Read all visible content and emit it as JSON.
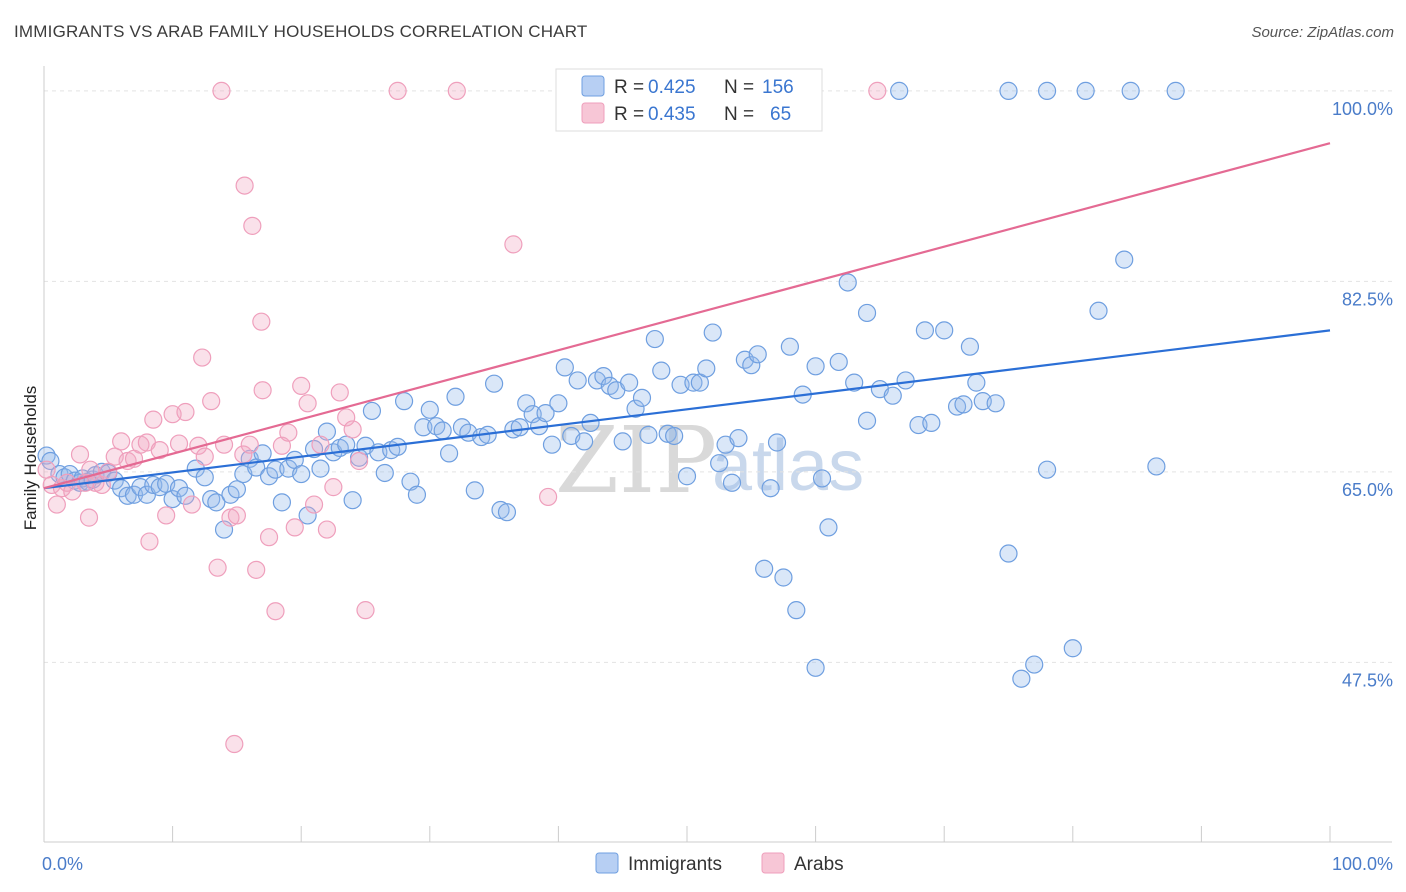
{
  "header": {
    "title": "IMMIGRANTS VS ARAB FAMILY HOUSEHOLDS CORRELATION CHART",
    "source": "Source: ZipAtlas.com"
  },
  "watermark": {
    "zip": "ZIP",
    "atlas": "atlas"
  },
  "chart_data": {
    "type": "scatter",
    "title": "IMMIGRANTS VS ARAB FAMILY HOUSEHOLDS CORRELATION CHART",
    "xlabel": "",
    "ylabel": "Family Households",
    "xlim": [
      0,
      100
    ],
    "ylim": [
      31,
      101
    ],
    "x_tick_labels": [
      {
        "value": 0,
        "label": "0.0%"
      },
      {
        "value": 100,
        "label": "100.0%"
      }
    ],
    "y_ticks": [
      {
        "value": 47.5,
        "label": "47.5%"
      },
      {
        "value": 65.0,
        "label": "65.0%"
      },
      {
        "value": 82.5,
        "label": "82.5%"
      },
      {
        "value": 100.0,
        "label": "100.0%"
      }
    ],
    "grid": true,
    "legend_position": "bottom-center",
    "stats_legend": [
      {
        "series": "Immigrants",
        "r_label": "R = ",
        "r": "0.425",
        "n_label": "N = ",
        "n": "156"
      },
      {
        "series": "Arabs",
        "r_label": "R = ",
        "r": "0.435",
        "n_label": "N = ",
        "n": "65"
      }
    ],
    "series": [
      {
        "name": "Immigrants",
        "color": "#6f9fe0",
        "line_color": "#2b6fd6",
        "trend": {
          "x": [
            0,
            100
          ],
          "y": [
            63.5,
            78.0
          ]
        },
        "points": [
          [
            0.2,
            66.5
          ],
          [
            0.5,
            66.0
          ],
          [
            1.2,
            64.8
          ],
          [
            1.6,
            64.5
          ],
          [
            2.0,
            64.8
          ],
          [
            2.4,
            64.2
          ],
          [
            2.8,
            64.0
          ],
          [
            3.0,
            64.4
          ],
          [
            3.4,
            64.1
          ],
          [
            3.8,
            64.3
          ],
          [
            4.0,
            64.7
          ],
          [
            4.5,
            65.0
          ],
          [
            5.0,
            64.9
          ],
          [
            5.5,
            64.2
          ],
          [
            6.0,
            63.5
          ],
          [
            6.5,
            62.8
          ],
          [
            7.0,
            62.9
          ],
          [
            7.5,
            63.6
          ],
          [
            8.0,
            62.9
          ],
          [
            8.5,
            63.8
          ],
          [
            9.0,
            63.6
          ],
          [
            9.5,
            63.9
          ],
          [
            10.0,
            62.5
          ],
          [
            10.5,
            63.5
          ],
          [
            11.0,
            62.8
          ],
          [
            11.8,
            65.3
          ],
          [
            12.5,
            64.5
          ],
          [
            13.0,
            62.5
          ],
          [
            13.4,
            62.2
          ],
          [
            14.0,
            59.7
          ],
          [
            14.5,
            62.9
          ],
          [
            15.0,
            63.4
          ],
          [
            15.5,
            64.8
          ],
          [
            16.0,
            66.2
          ],
          [
            16.5,
            65.4
          ],
          [
            17.0,
            66.7
          ],
          [
            17.5,
            64.6
          ],
          [
            18.0,
            65.2
          ],
          [
            18.5,
            62.2
          ],
          [
            19.0,
            65.3
          ],
          [
            19.5,
            66.1
          ],
          [
            20.0,
            64.8
          ],
          [
            20.5,
            61.0
          ],
          [
            21.0,
            67.1
          ],
          [
            21.5,
            65.3
          ],
          [
            22.0,
            68.7
          ],
          [
            22.5,
            66.8
          ],
          [
            23.0,
            67.2
          ],
          [
            23.5,
            67.5
          ],
          [
            24.0,
            62.4
          ],
          [
            24.5,
            66.3
          ],
          [
            25.0,
            67.4
          ],
          [
            25.5,
            70.6
          ],
          [
            26.0,
            66.8
          ],
          [
            26.5,
            64.9
          ],
          [
            27.0,
            67.0
          ],
          [
            27.5,
            67.3
          ],
          [
            28.0,
            71.5
          ],
          [
            28.5,
            64.1
          ],
          [
            29.0,
            62.9
          ],
          [
            29.5,
            69.1
          ],
          [
            30.0,
            70.7
          ],
          [
            30.5,
            69.2
          ],
          [
            31.0,
            68.8
          ],
          [
            31.5,
            66.7
          ],
          [
            32.0,
            71.9
          ],
          [
            32.5,
            69.1
          ],
          [
            33.0,
            68.6
          ],
          [
            33.5,
            63.3
          ],
          [
            34.0,
            68.2
          ],
          [
            34.5,
            68.4
          ],
          [
            35.0,
            73.1
          ],
          [
            35.5,
            61.5
          ],
          [
            36.0,
            61.3
          ],
          [
            36.5,
            68.9
          ],
          [
            37.0,
            69.1
          ],
          [
            37.5,
            71.3
          ],
          [
            38.0,
            70.3
          ],
          [
            38.5,
            69.2
          ],
          [
            39.0,
            70.4
          ],
          [
            39.5,
            67.5
          ],
          [
            40.0,
            71.3
          ],
          [
            40.5,
            74.6
          ],
          [
            41.0,
            68.3
          ],
          [
            41.5,
            73.4
          ],
          [
            42.0,
            67.8
          ],
          [
            42.5,
            69.5
          ],
          [
            43.0,
            73.4
          ],
          [
            43.5,
            73.8
          ],
          [
            44.0,
            72.9
          ],
          [
            44.5,
            72.5
          ],
          [
            45.0,
            67.8
          ],
          [
            45.5,
            73.2
          ],
          [
            46.0,
            70.8
          ],
          [
            46.5,
            71.8
          ],
          [
            47.0,
            68.4
          ],
          [
            47.5,
            77.2
          ],
          [
            48.0,
            74.3
          ],
          [
            48.5,
            68.5
          ],
          [
            49.0,
            68.3
          ],
          [
            49.5,
            73.0
          ],
          [
            50.0,
            64.6
          ],
          [
            50.5,
            73.2
          ],
          [
            51.0,
            73.2
          ],
          [
            51.5,
            74.5
          ],
          [
            52.0,
            77.8
          ],
          [
            52.5,
            65.8
          ],
          [
            53.0,
            67.5
          ],
          [
            53.5,
            64.0
          ],
          [
            54.0,
            68.1
          ],
          [
            54.5,
            75.3
          ],
          [
            55.0,
            74.8
          ],
          [
            55.5,
            75.8
          ],
          [
            56.0,
            56.1
          ],
          [
            56.5,
            63.5
          ],
          [
            57.0,
            67.7
          ],
          [
            57.5,
            55.3
          ],
          [
            58.0,
            76.5
          ],
          [
            58.5,
            52.3
          ],
          [
            59.0,
            72.1
          ],
          [
            60.0,
            74.7
          ],
          [
            60.5,
            64.4
          ],
          [
            61.0,
            59.9
          ],
          [
            61.8,
            75.1
          ],
          [
            62.5,
            82.4
          ],
          [
            63.0,
            73.2
          ],
          [
            64.0,
            69.7
          ],
          [
            65.0,
            72.6
          ],
          [
            66.0,
            72.0
          ],
          [
            67.0,
            73.4
          ],
          [
            68.0,
            69.3
          ],
          [
            68.5,
            78.0
          ],
          [
            69.0,
            69.5
          ],
          [
            70.0,
            78.0
          ],
          [
            71.0,
            71.0
          ],
          [
            71.5,
            71.2
          ],
          [
            72.0,
            76.5
          ],
          [
            72.5,
            73.2
          ],
          [
            73.0,
            71.5
          ],
          [
            74.0,
            71.3
          ],
          [
            75.0,
            57.5
          ],
          [
            76.0,
            46.0
          ],
          [
            77.0,
            47.3
          ],
          [
            78.0,
            65.2
          ],
          [
            80.0,
            48.8
          ],
          [
            82.0,
            79.8
          ],
          [
            84.0,
            84.5
          ],
          [
            60.0,
            47.0
          ],
          [
            64.0,
            79.6
          ],
          [
            66.5,
            100.0
          ],
          [
            75.0,
            100.0
          ],
          [
            78.0,
            100.0
          ],
          [
            81.0,
            100.0
          ],
          [
            84.5,
            100.0
          ],
          [
            88.0,
            100.0
          ],
          [
            86.5,
            65.5
          ]
        ]
      },
      {
        "name": "Arabs",
        "color": "#ef9fbc",
        "line_color": "#e46a93",
        "trend": {
          "x": [
            0,
            100
          ],
          "y": [
            63.5,
            95.2
          ]
        },
        "points": [
          [
            0.2,
            65.2
          ],
          [
            0.6,
            63.8
          ],
          [
            1.0,
            62.0
          ],
          [
            1.4,
            63.5
          ],
          [
            1.8,
            64.0
          ],
          [
            2.2,
            63.2
          ],
          [
            2.8,
            66.6
          ],
          [
            3.2,
            64.0
          ],
          [
            3.6,
            65.2
          ],
          [
            4.0,
            64.0
          ],
          [
            4.5,
            63.8
          ],
          [
            5.0,
            65.0
          ],
          [
            5.5,
            66.4
          ],
          [
            6.0,
            67.8
          ],
          [
            6.5,
            66.0
          ],
          [
            7.0,
            66.2
          ],
          [
            7.5,
            67.5
          ],
          [
            8.0,
            67.7
          ],
          [
            8.5,
            69.8
          ],
          [
            9.0,
            67.0
          ],
          [
            9.5,
            61.0
          ],
          [
            10.0,
            70.3
          ],
          [
            10.5,
            67.6
          ],
          [
            11.0,
            70.5
          ],
          [
            11.5,
            62.0
          ],
          [
            12.0,
            67.4
          ],
          [
            12.5,
            66.4
          ],
          [
            13.0,
            71.5
          ],
          [
            13.5,
            56.2
          ],
          [
            14.0,
            67.5
          ],
          [
            14.5,
            60.8
          ],
          [
            15.0,
            61.0
          ],
          [
            15.5,
            66.6
          ],
          [
            16.0,
            67.5
          ],
          [
            16.5,
            56.0
          ],
          [
            17.0,
            72.5
          ],
          [
            17.5,
            59.0
          ],
          [
            18.0,
            52.2
          ],
          [
            18.5,
            67.4
          ],
          [
            19.0,
            68.6
          ],
          [
            19.5,
            59.9
          ],
          [
            20.0,
            72.9
          ],
          [
            20.5,
            71.3
          ],
          [
            21.0,
            62.0
          ],
          [
            21.5,
            67.5
          ],
          [
            22.0,
            59.7
          ],
          [
            22.5,
            63.6
          ],
          [
            23.0,
            72.3
          ],
          [
            23.5,
            70.0
          ],
          [
            24.0,
            68.9
          ],
          [
            24.5,
            66.0
          ],
          [
            25.0,
            52.3
          ],
          [
            3.5,
            60.8
          ],
          [
            8.2,
            58.6
          ],
          [
            12.3,
            75.5
          ],
          [
            14.8,
            40.0
          ],
          [
            15.6,
            91.3
          ],
          [
            16.2,
            87.6
          ],
          [
            16.9,
            78.8
          ],
          [
            13.8,
            100.0
          ],
          [
            27.5,
            100.0
          ],
          [
            36.5,
            85.9
          ],
          [
            39.2,
            62.7
          ],
          [
            64.8,
            100.0
          ],
          [
            32.1,
            100.0
          ]
        ]
      }
    ]
  },
  "legend": {
    "items": [
      {
        "label": "Immigrants",
        "color": "#6f9fe0"
      },
      {
        "label": "Arabs",
        "color": "#ef9fbc"
      }
    ]
  }
}
